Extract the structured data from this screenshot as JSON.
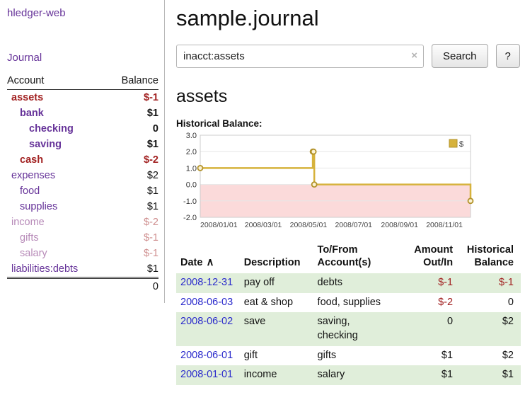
{
  "theme": {
    "purple": "#663399",
    "negative": "#a22222",
    "faded_purple": "#b78ab8",
    "faded_red": "#cf8f8f",
    "link_blue": "#2b2bcc",
    "row_green": "#e0eeda"
  },
  "sidebar": {
    "app_title": "hledger-web",
    "journal_link": "Journal",
    "col_account": "Account",
    "col_balance": "Balance",
    "accounts": [
      {
        "name": "assets",
        "balance": "$-1",
        "indent": 0,
        "bold": true,
        "neg": true,
        "faded": false
      },
      {
        "name": "bank",
        "balance": "$1",
        "indent": 1,
        "bold": true,
        "neg": false,
        "faded": false
      },
      {
        "name": "checking",
        "balance": "0",
        "indent": 2,
        "bold": true,
        "neg": false,
        "faded": false
      },
      {
        "name": "saving",
        "balance": "$1",
        "indent": 2,
        "bold": true,
        "neg": false,
        "faded": false
      },
      {
        "name": "cash",
        "balance": "$-2",
        "indent": 1,
        "bold": true,
        "neg": true,
        "faded": false
      },
      {
        "name": "expenses",
        "balance": "$2",
        "indent": 0,
        "bold": false,
        "neg": false,
        "faded": false
      },
      {
        "name": "food",
        "balance": "$1",
        "indent": 1,
        "bold": false,
        "neg": false,
        "faded": false
      },
      {
        "name": "supplies",
        "balance": "$1",
        "indent": 1,
        "bold": false,
        "neg": false,
        "faded": false
      },
      {
        "name": "income",
        "balance": "$-2",
        "indent": 0,
        "bold": false,
        "neg": false,
        "faded": true
      },
      {
        "name": "gifts",
        "balance": "$-1",
        "indent": 1,
        "bold": false,
        "neg": false,
        "faded": true
      },
      {
        "name": "salary",
        "balance": "$-1",
        "indent": 1,
        "bold": false,
        "neg": false,
        "faded": true
      },
      {
        "name": "liabilities:debts",
        "balance": "$1",
        "indent": 0,
        "bold": false,
        "neg": false,
        "faded": false
      }
    ],
    "total": "0"
  },
  "main": {
    "title": "sample.journal",
    "search": {
      "value": "inacct:assets",
      "clear_icon": "×",
      "button_label": "Search",
      "help_label": "?"
    },
    "account_heading": "assets",
    "chart_data": {
      "type": "line",
      "step": true,
      "title": "Historical Balance:",
      "series": [
        {
          "name": "$",
          "color": "#d6b23c",
          "color_dark": "#b2922a",
          "marker_fill": "#fbf2d3",
          "x": [
            "2008-01-01",
            "2008-06-01",
            "2008-06-02",
            "2008-06-03",
            "2008-12-31"
          ],
          "y": [
            1,
            2,
            2,
            0,
            -1
          ]
        }
      ],
      "x_domain": [
        "2008-01-01",
        "2008-12-31"
      ],
      "x_tick_labels": [
        "2008/01/01",
        "2008/03/01",
        "2008/05/01",
        "2008/07/01",
        "2008/09/01",
        "2008/11/01"
      ],
      "y_ticks": [
        3.0,
        2.0,
        1.0,
        0.0,
        -1.0,
        -2.0
      ],
      "ylim": [
        -2,
        3
      ],
      "negative_region_color": "#fbdada",
      "grid": true,
      "legend": {
        "label": "$",
        "position": "top-right"
      }
    },
    "register": {
      "headers": {
        "date": "Date",
        "sort_icon": "∧",
        "description": "Description",
        "account": "To/From Account(s)",
        "amount": "Amount Out/In",
        "balance": "Historical Balance"
      },
      "rows": [
        {
          "date": "2008-12-31",
          "description": "pay off",
          "account": "debts",
          "amount": "$-1",
          "amount_negative": true,
          "balance": "$-1",
          "balance_negative": true
        },
        {
          "date": "2008-06-03",
          "description": "eat & shop",
          "account": "food, supplies",
          "amount": "$-2",
          "amount_negative": true,
          "balance": "0",
          "balance_negative": false
        },
        {
          "date": "2008-06-02",
          "description": "save",
          "account": "saving,\nchecking",
          "amount": "0",
          "amount_negative": false,
          "balance": "$2",
          "balance_negative": false
        },
        {
          "date": "2008-06-01",
          "description": "gift",
          "account": "gifts",
          "amount": "$1",
          "amount_negative": false,
          "balance": "$2",
          "balance_negative": false
        },
        {
          "date": "2008-01-01",
          "description": "income",
          "account": "salary",
          "amount": "$1",
          "amount_negative": false,
          "balance": "$1",
          "balance_negative": false
        }
      ]
    }
  }
}
